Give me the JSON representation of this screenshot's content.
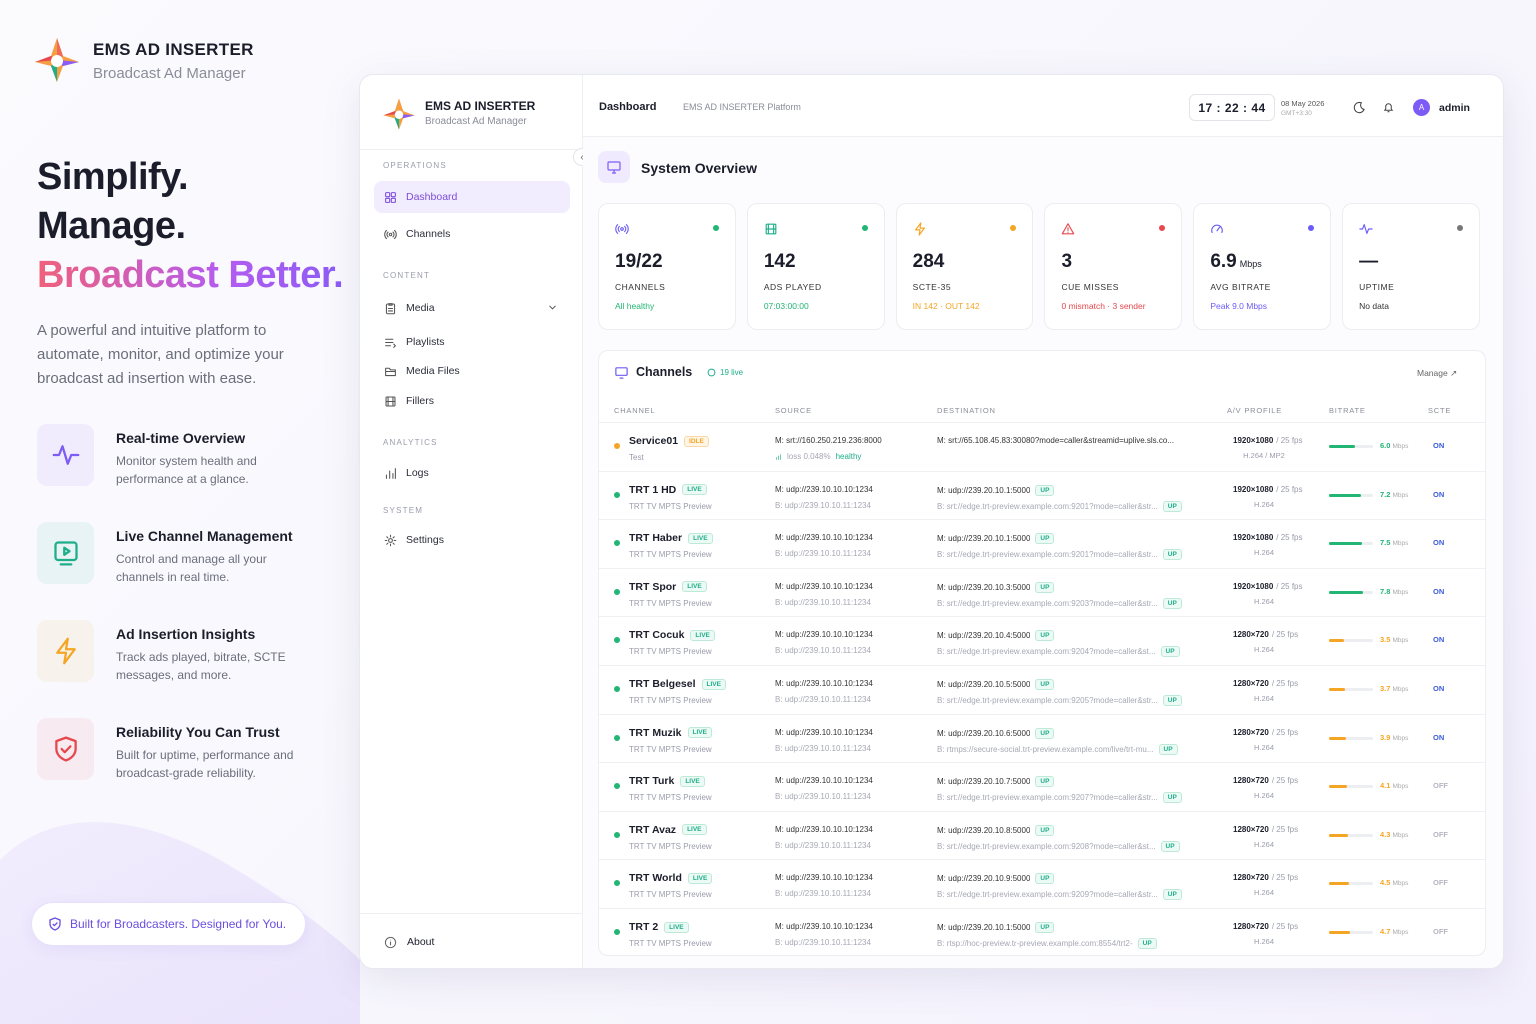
{
  "brand": {
    "title": "EMS AD INSERTER",
    "subtitle": "Broadcast Ad Manager"
  },
  "hero": {
    "lines": [
      "Simplify.",
      "Manage.",
      "Broadcast Better."
    ],
    "description": "A powerful and intuitive platform to automate, monitor, and optimize your broadcast ad insertion with ease."
  },
  "features": [
    {
      "title": "Real-time Overview",
      "description": "Monitor system health and performance at a glance.",
      "color": "#7c5cf5"
    },
    {
      "title": "Live Channel Management",
      "description": "Control and manage all your channels in real time.",
      "color": "#1fae8a"
    },
    {
      "title": "Ad Insertion Insights",
      "description": "Track ads played, bitrate, SCTE messages, and more.",
      "color": "#f5a524"
    },
    {
      "title": "Reliability You Can Trust",
      "description": "Built for uptime, performance and broadcast-grade reliability.",
      "color": "#e5484d"
    }
  ],
  "badge": "Built for Broadcasters. Designed for You.",
  "sidebar": {
    "sections": [
      {
        "title": "OPERATIONS",
        "items": [
          "Dashboard",
          "Channels"
        ]
      },
      {
        "title": "CONTENT",
        "items": [
          "Media",
          "Playlists",
          "Media Files",
          "Fillers"
        ]
      },
      {
        "title": "ANALYTICS",
        "items": [
          "Logs"
        ]
      },
      {
        "title": "SYSTEM",
        "items": [
          "Settings"
        ]
      }
    ],
    "about": "About"
  },
  "topbar": {
    "page": "Dashboard",
    "context": "EMS AD INSERTER Platform",
    "time": "17 : 22 : 44",
    "date": "08 May 2026",
    "timezone": "GMT+3:30",
    "avatar": "A",
    "user": "admin"
  },
  "overview": {
    "title": "System Overview",
    "stats": [
      {
        "value": "19/22",
        "label": "CHANNELS",
        "note": "All healthy",
        "color": "#22b573"
      },
      {
        "value": "142",
        "label": "ADS PLAYED",
        "note": "07:03:00:00",
        "color": "#22b573"
      },
      {
        "value": "284",
        "label": "SCTE-35",
        "note": "IN 142 · OUT 142",
        "color": "#f5a524"
      },
      {
        "value": "3",
        "label": "CUE MISSES",
        "note": "0 mismatch · 3 sender",
        "color": "#e5484d"
      },
      {
        "value": "6.9",
        "unit": "Mbps",
        "label": "AVG BITRATE",
        "note": "Peak 9.0 Mbps",
        "color": "#6b5cf5"
      },
      {
        "value": "—",
        "label": "UPTIME",
        "note": "No data",
        "color": "#777777"
      }
    ]
  },
  "channels": {
    "title": "Channels",
    "live": "19 live",
    "manage": "Manage ↗",
    "bitrate_unit": "Mbps",
    "columns": [
      "CHANNEL",
      "SOURCE",
      "DESTINATION",
      "A/V PROFILE",
      "BITRATE",
      "SCTE"
    ],
    "rows": [
      {
        "name": "Service01",
        "status": "IDLE",
        "subtitle": "Test",
        "source": [
          "M: srt://160.250.219.236:8000"
        ],
        "loss": "loss 0.048%",
        "health": "healthy",
        "destination": [
          {
            "url": "M: srt://65.108.45.83:30080?mode=caller&streamid=uplive.sls.co..."
          }
        ],
        "resolution": "1920×1080",
        "fps": "/ 25 fps",
        "codec": "H.264 / MP2",
        "bitrate": "6.0",
        "color": "#22b573",
        "scte": "ON"
      },
      {
        "name": "TRT 1 HD",
        "status": "LIVE",
        "subtitle": "TRT TV MPTS Preview",
        "source": [
          "M: udp://239.10.10.10:1234",
          "B: udp://239.10.10.11:1234"
        ],
        "destination": [
          {
            "url": "M: udp://239.20.10.1:5000",
            "status": "UP"
          },
          {
            "url": "B: srt://edge.trt-preview.example.com:9201?mode=caller&str...",
            "status": "UP"
          }
        ],
        "resolution": "1920×1080",
        "fps": "/ 25 fps",
        "codec": "H.264",
        "bitrate": "7.2",
        "color": "#22b573",
        "scte": "ON"
      },
      {
        "name": "TRT Haber",
        "status": "LIVE",
        "subtitle": "TRT TV MPTS Preview",
        "source": [
          "M: udp://239.10.10.10:1234",
          "B: udp://239.10.10.11:1234"
        ],
        "destination": [
          {
            "url": "M: udp://239.20.10.1:5000",
            "status": "UP"
          },
          {
            "url": "B: srt://edge.trt-preview.example.com:9201?mode=caller&str...",
            "status": "UP"
          }
        ],
        "resolution": "1920×1080",
        "fps": "/ 25 fps",
        "codec": "H.264",
        "bitrate": "7.5",
        "color": "#22b573",
        "scte": "ON"
      },
      {
        "name": "TRT Spor",
        "status": "LIVE",
        "subtitle": "TRT TV MPTS Preview",
        "source": [
          "M: udp://239.10.10.10:1234",
          "B: udp://239.10.10.11:1234"
        ],
        "destination": [
          {
            "url": "M: udp://239.20.10.3:5000",
            "status": "UP"
          },
          {
            "url": "B: srt://edge.trt-preview.example.com:9203?mode=caller&str...",
            "status": "UP"
          }
        ],
        "resolution": "1920×1080",
        "fps": "/ 25 fps",
        "codec": "H.264",
        "bitrate": "7.8",
        "color": "#22b573",
        "scte": "ON"
      },
      {
        "name": "TRT Cocuk",
        "status": "LIVE",
        "subtitle": "TRT TV MPTS Preview",
        "source": [
          "M: udp://239.10.10.10:1234",
          "B: udp://239.10.10.11:1234"
        ],
        "destination": [
          {
            "url": "M: udp://239.20.10.4:5000",
            "status": "UP"
          },
          {
            "url": "B: srt://edge.trt-preview.example.com:9204?mode=caller&st...",
            "status": "UP"
          }
        ],
        "resolution": "1280×720",
        "fps": "/ 25 fps",
        "codec": "H.264",
        "bitrate": "3.5",
        "color": "#f5a524",
        "scte": "ON"
      },
      {
        "name": "TRT Belgesel",
        "status": "LIVE",
        "subtitle": "TRT TV MPTS Preview",
        "source": [
          "M: udp://239.10.10.10:1234",
          "B: udp://239.10.10.11:1234"
        ],
        "destination": [
          {
            "url": "M: udp://239.20.10.5:5000",
            "status": "UP"
          },
          {
            "url": "B: srt://edge.trt-preview.example.com:9205?mode=caller&str...",
            "status": "UP"
          }
        ],
        "resolution": "1280×720",
        "fps": "/ 25 fps",
        "codec": "H.264",
        "bitrate": "3.7",
        "color": "#f5a524",
        "scte": "ON"
      },
      {
        "name": "TRT Muzik",
        "status": "LIVE",
        "subtitle": "TRT TV MPTS Preview",
        "source": [
          "M: udp://239.10.10.10:1234",
          "B: udp://239.10.10.11:1234"
        ],
        "destination": [
          {
            "url": "M: udp://239.20.10.6:5000",
            "status": "UP"
          },
          {
            "url": "B: rtmps://secure-social.trt-preview.example.com/live/trt-mu...",
            "status": "UP"
          }
        ],
        "resolution": "1280×720",
        "fps": "/ 25 fps",
        "codec": "H.264",
        "bitrate": "3.9",
        "color": "#f5a524",
        "scte": "ON"
      },
      {
        "name": "TRT Turk",
        "status": "LIVE",
        "subtitle": "TRT TV MPTS Preview",
        "source": [
          "M: udp://239.10.10.10:1234",
          "B: udp://239.10.10.11:1234"
        ],
        "destination": [
          {
            "url": "M: udp://239.20.10.7:5000",
            "status": "UP"
          },
          {
            "url": "B: srt://edge.trt-preview.example.com:9207?mode=caller&str...",
            "status": "UP"
          }
        ],
        "resolution": "1280×720",
        "fps": "/ 25 fps",
        "codec": "H.264",
        "bitrate": "4.1",
        "color": "#f5a524",
        "scte": "OFF"
      },
      {
        "name": "TRT Avaz",
        "status": "LIVE",
        "subtitle": "TRT TV MPTS Preview",
        "source": [
          "M: udp://239.10.10.10:1234",
          "B: udp://239.10.10.11:1234"
        ],
        "destination": [
          {
            "url": "M: udp://239.20.10.8:5000",
            "status": "UP"
          },
          {
            "url": "B: srt://edge.trt-preview.example.com:9208?mode=caller&st...",
            "status": "UP"
          }
        ],
        "resolution": "1280×720",
        "fps": "/ 25 fps",
        "codec": "H.264",
        "bitrate": "4.3",
        "color": "#f5a524",
        "scte": "OFF"
      },
      {
        "name": "TRT World",
        "status": "LIVE",
        "subtitle": "TRT TV MPTS Preview",
        "source": [
          "M: udp://239.10.10.10:1234",
          "B: udp://239.10.10.11:1234"
        ],
        "destination": [
          {
            "url": "M: udp://239.20.10.9:5000",
            "status": "UP"
          },
          {
            "url": "B: srt://edge.trt-preview.example.com:9209?mode=caller&str...",
            "status": "UP"
          }
        ],
        "resolution": "1280×720",
        "fps": "/ 25 fps",
        "codec": "H.264",
        "bitrate": "4.5",
        "color": "#f5a524",
        "scte": "OFF"
      },
      {
        "name": "TRT 2",
        "status": "LIVE",
        "subtitle": "TRT TV MPTS Preview",
        "source": [
          "M: udp://239.10.10.10:1234",
          "B: udp://239.10.10.11:1234"
        ],
        "destination": [
          {
            "url": "M: udp://239.20.10.1:5000",
            "status": "UP"
          },
          {
            "url": "B: rtsp://hoc-preview.tr-preview.example.com:8554/trt2-",
            "status": "UP"
          }
        ],
        "resolution": "1280×720",
        "fps": "/ 25 fps",
        "codec": "H.264",
        "bitrate": "4.7",
        "color": "#f5a524",
        "scte": "OFF"
      }
    ]
  }
}
